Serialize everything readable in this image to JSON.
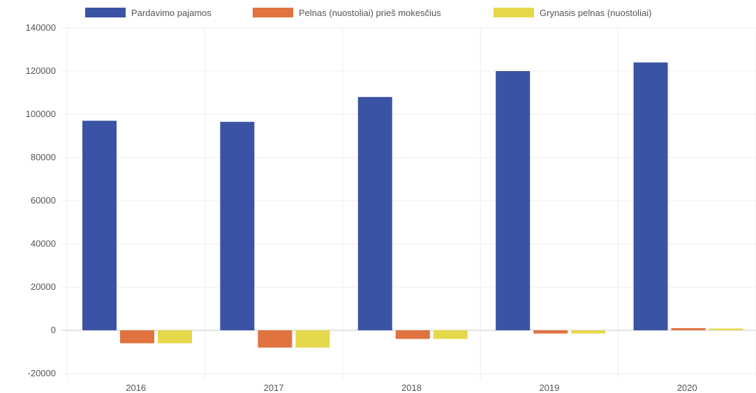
{
  "chart_data": {
    "type": "bar",
    "categories": [
      "2016",
      "2017",
      "2018",
      "2019",
      "2020"
    ],
    "series": [
      {
        "name": "Pardavimo pajamos",
        "color": "#3b53a4",
        "values": [
          97000,
          96500,
          108000,
          120000,
          124000
        ]
      },
      {
        "name": "Pelnas (nuostoliai) prieš mokesčius",
        "color": "#e0733f",
        "values": [
          -6000,
          -8000,
          -4000,
          -1500,
          1000
        ]
      },
      {
        "name": "Grynasis pelnas (nuostoliai)",
        "color": "#e6d84b",
        "values": [
          -6000,
          -8000,
          -4000,
          -1500,
          800
        ]
      }
    ],
    "ylim": [
      -20000,
      140000
    ],
    "yticks": [
      "140000",
      "120000",
      "100000",
      "80000",
      "60000",
      "40000",
      "20000",
      "0",
      "-20000"
    ],
    "grid": true,
    "legend": "top"
  }
}
